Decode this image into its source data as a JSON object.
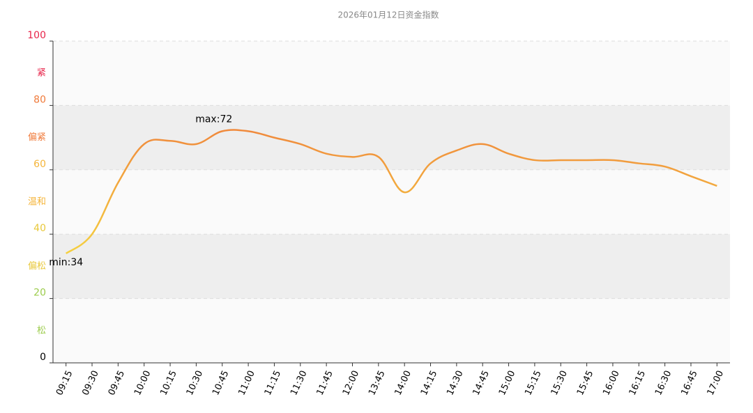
{
  "chart_data": {
    "type": "line",
    "title": "2026年01月12日资金指数",
    "categories": [
      "09:15",
      "09:30",
      "09:45",
      "10:00",
      "10:15",
      "10:30",
      "10:45",
      "11:00",
      "11:15",
      "11:30",
      "11:45",
      "12:00",
      "13:45",
      "14:00",
      "14:15",
      "14:30",
      "14:45",
      "15:00",
      "15:15",
      "15:30",
      "15:45",
      "16:00",
      "16:15",
      "16:30",
      "16:45",
      "17:00"
    ],
    "values": [
      34,
      40,
      56,
      68,
      69,
      68,
      72,
      72,
      70,
      68,
      65,
      64,
      64,
      53,
      62,
      66,
      68,
      65,
      63,
      63,
      63,
      63,
      62,
      61,
      58,
      55
    ],
    "line_colors": [
      "#f5d040",
      "#f08a3c"
    ],
    "ylim": [
      0,
      100
    ],
    "yticks": [
      0,
      20,
      40,
      60,
      80,
      100
    ],
    "grid": true,
    "bands": [
      {
        "label": "松",
        "from": 0,
        "to": 20,
        "color": "#9ccc4c",
        "fill": "#fafafa"
      },
      {
        "label": "偏松",
        "from": 20,
        "to": 40,
        "color": "#e8c83a",
        "fill": "#eeeeee"
      },
      {
        "label": "温和",
        "from": 40,
        "to": 60,
        "color": "#f5b53a",
        "fill": "#fafafa"
      },
      {
        "label": "偏紧",
        "from": 60,
        "to": 80,
        "color": "#f07a3a",
        "fill": "#eeeeee"
      },
      {
        "label": "紧",
        "from": 80,
        "to": 100,
        "color": "#e8244a",
        "fill": "#fafafa"
      }
    ],
    "max_label": "max:72",
    "min_label": "min:34"
  }
}
